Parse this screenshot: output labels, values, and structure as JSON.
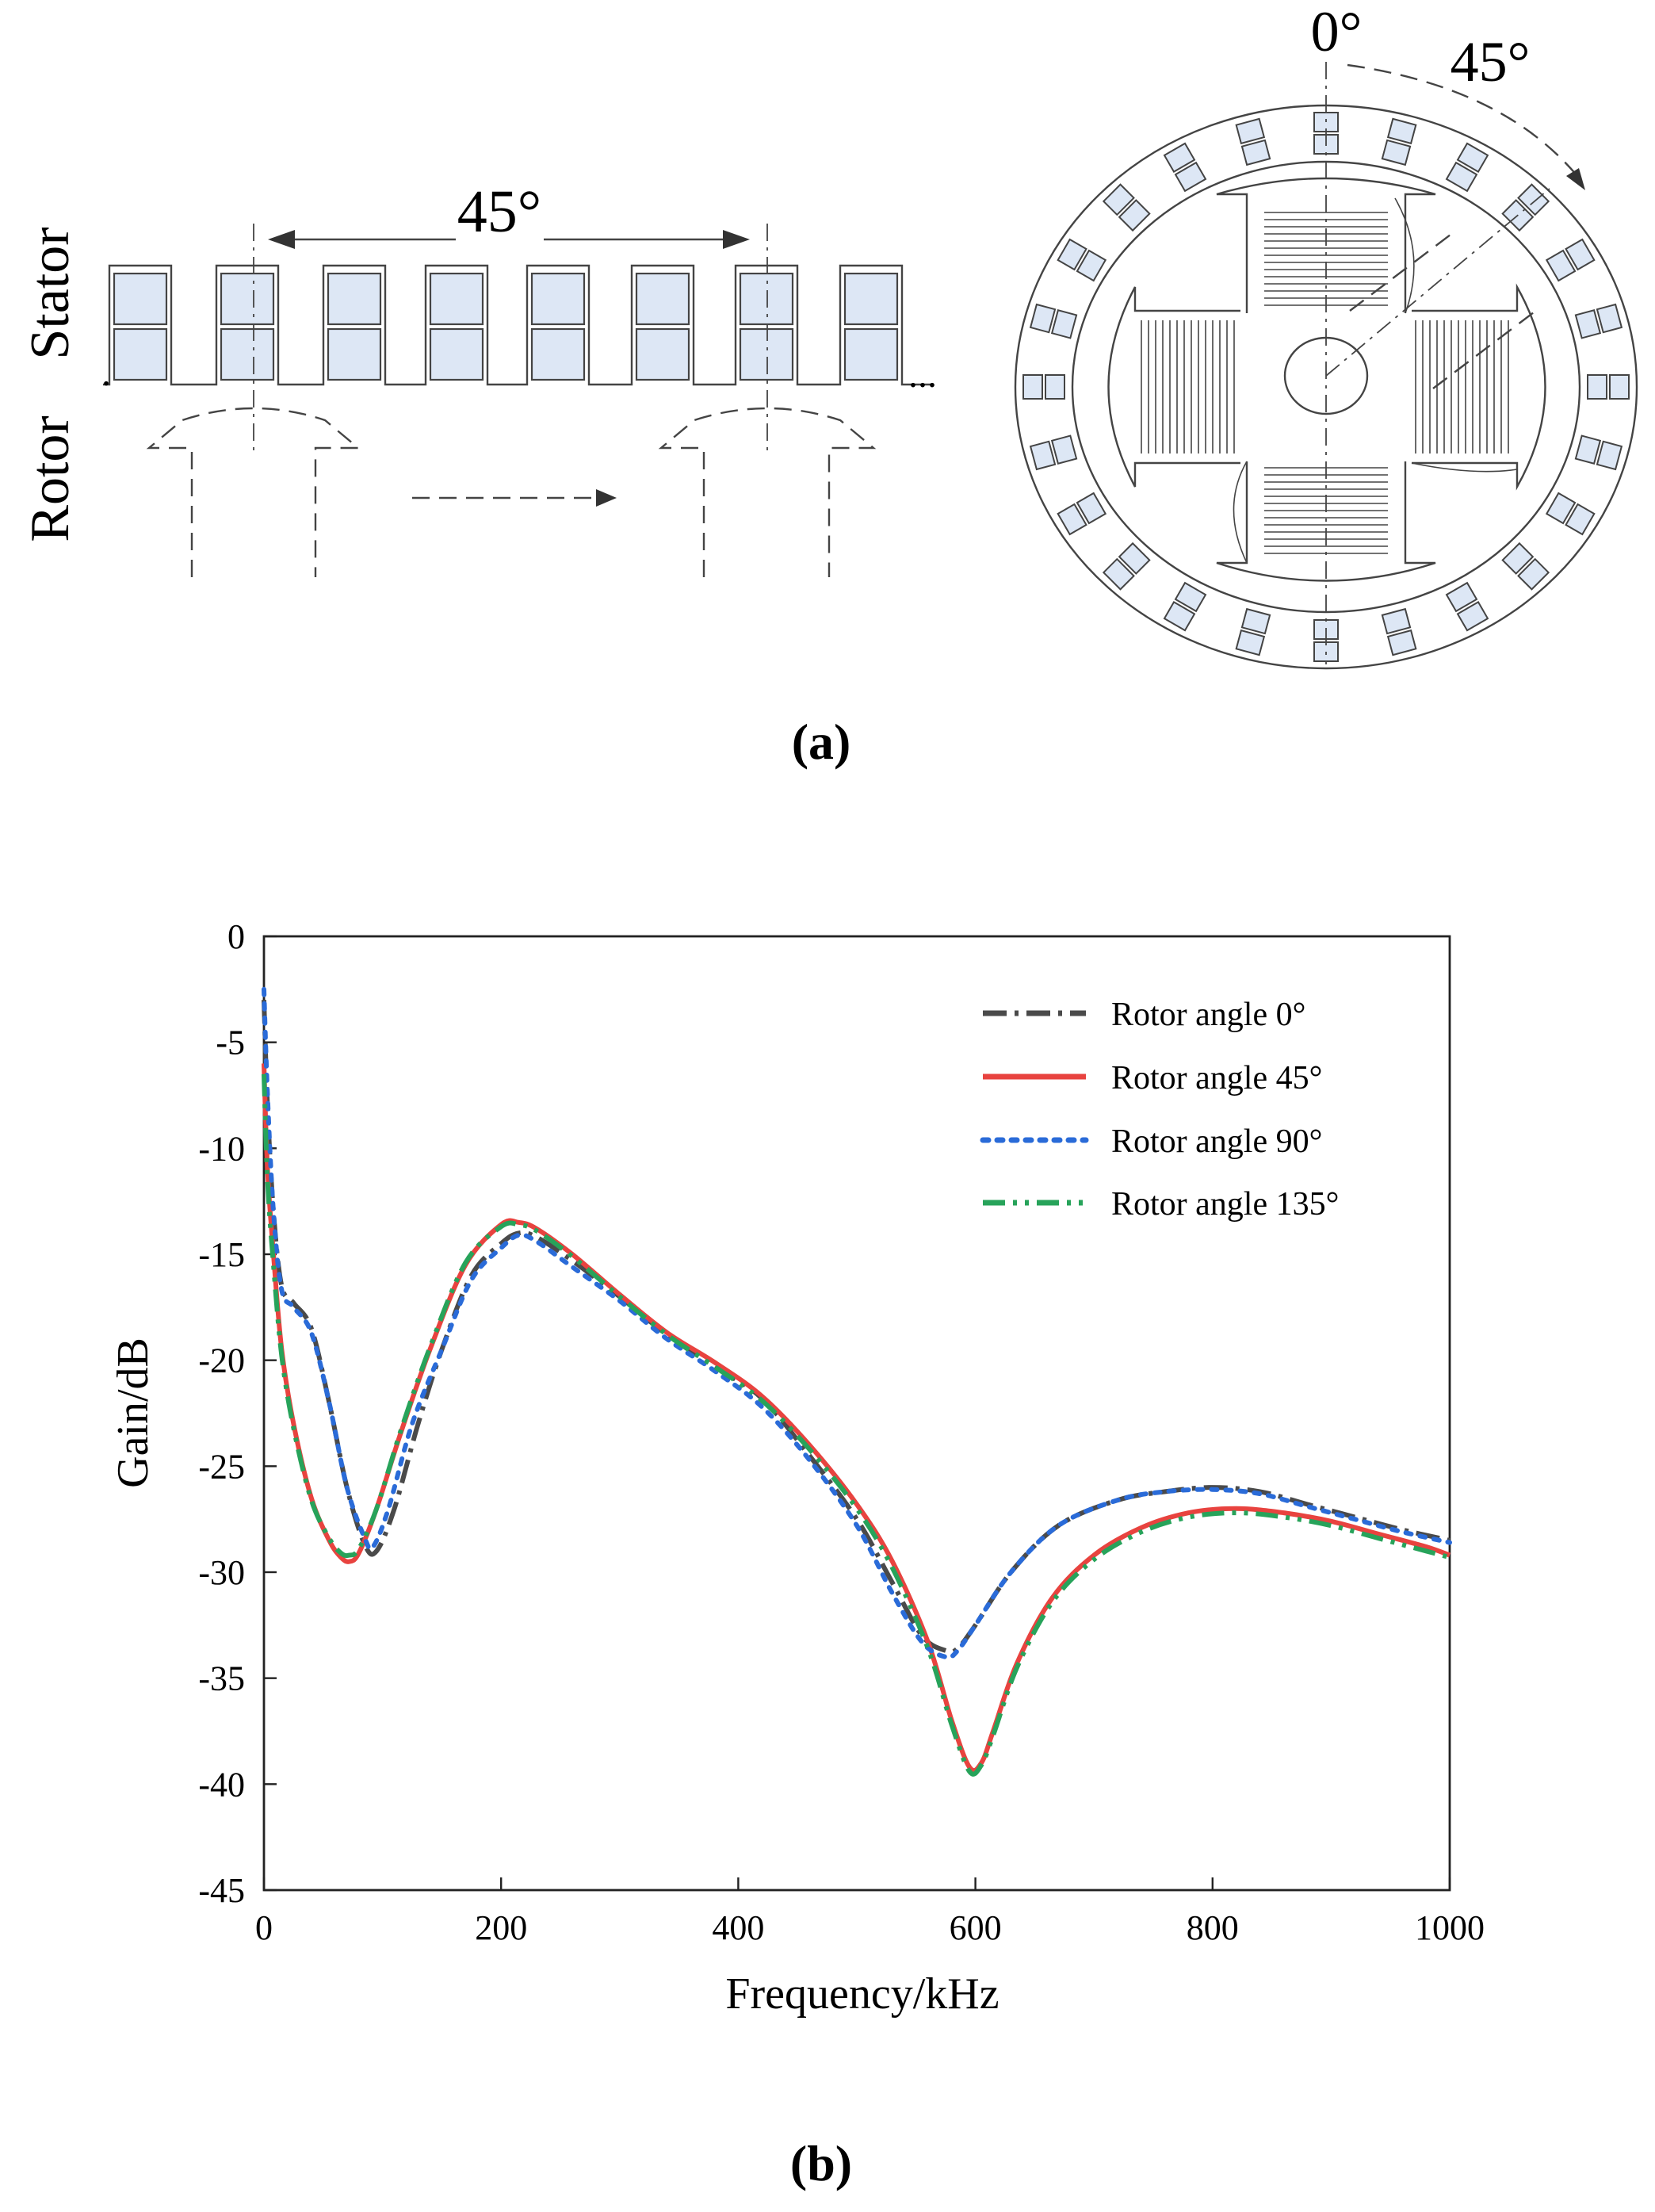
{
  "diagram": {
    "stator_label": "Stator",
    "rotor_label": "Rotor",
    "linear_angle": "45°",
    "cross_angle_start": "0°",
    "cross_angle_end": "45°",
    "dots_left": ".",
    "dots_right": "...",
    "slot_fill": "#dde7f5"
  },
  "captions": {
    "a": "(a)",
    "b": "(b)"
  },
  "chart_data": {
    "type": "line",
    "title": "",
    "xlabel": "Frequency/kHz",
    "ylabel": "Gain/dB",
    "xlim": [
      0,
      1000
    ],
    "ylim": [
      -45,
      0
    ],
    "xticks": [
      0,
      200,
      400,
      600,
      800,
      1000
    ],
    "yticks": [
      0,
      -5,
      -10,
      -15,
      -20,
      -25,
      -30,
      -35,
      -40,
      -45
    ],
    "xtick_labels": [
      "0",
      "200",
      "400",
      "600",
      "800",
      "1000"
    ],
    "ytick_labels": [
      "0",
      "-5",
      "-10",
      "-15",
      "-20",
      "-25",
      "-30",
      "-35",
      "-40",
      "-45"
    ],
    "grid": false,
    "legend_position": "top-right",
    "series": [
      {
        "name": "Rotor angle 0°",
        "color": "#4a4a4a",
        "style": "dash-dot",
        "x": [
          0,
          3,
          8,
          15,
          25,
          40,
          55,
          70,
          85,
          95,
          110,
          130,
          150,
          175,
          200,
          215,
          230,
          260,
          300,
          340,
          380,
          420,
          460,
          500,
          530,
          555,
          575,
          585,
          600,
          630,
          670,
          720,
          760,
          800,
          840,
          880,
          920,
          960,
          1000
        ],
        "y": [
          -3,
          -8,
          -13,
          -16.5,
          -17.3,
          -18.5,
          -22,
          -26,
          -28.7,
          -29,
          -27,
          -23,
          -19.5,
          -16,
          -14.5,
          -14,
          -14.2,
          -15.3,
          -17,
          -18.8,
          -20.3,
          -21.8,
          -24.5,
          -27.5,
          -30.5,
          -33,
          -33.7,
          -33.6,
          -32.5,
          -30,
          -27.8,
          -26.6,
          -26.2,
          -26,
          -26.2,
          -26.8,
          -27.4,
          -28,
          -28.5
        ]
      },
      {
        "name": "Rotor angle 45°",
        "color": "#e8433f",
        "style": "solid",
        "x": [
          0,
          3,
          8,
          15,
          25,
          40,
          55,
          65,
          72,
          80,
          95,
          115,
          140,
          170,
          200,
          215,
          230,
          260,
          300,
          340,
          380,
          420,
          460,
          500,
          530,
          560,
          580,
          595,
          605,
          615,
          635,
          665,
          700,
          740,
          780,
          820,
          860,
          900,
          940,
          980,
          1000
        ],
        "y": [
          -6,
          -11,
          -15,
          -19.5,
          -23,
          -26.5,
          -28.5,
          -29.3,
          -29.5,
          -29.1,
          -27,
          -23.5,
          -19.5,
          -15.5,
          -13.6,
          -13.5,
          -13.8,
          -15,
          -16.9,
          -18.7,
          -20.1,
          -21.7,
          -24,
          -26.8,
          -29.5,
          -33.3,
          -37,
          -39.2,
          -39,
          -37.5,
          -34.3,
          -31.2,
          -29.2,
          -27.9,
          -27.2,
          -27,
          -27.2,
          -27.6,
          -28.2,
          -28.8,
          -29.2
        ]
      },
      {
        "name": "Rotor angle 90°",
        "color": "#2a6bd8",
        "style": "dotted",
        "x": [
          0,
          3,
          8,
          15,
          25,
          40,
          55,
          70,
          85,
          92,
          105,
          125,
          150,
          175,
          200,
          215,
          230,
          260,
          300,
          340,
          380,
          420,
          460,
          500,
          530,
          555,
          575,
          585,
          600,
          630,
          670,
          720,
          760,
          800,
          840,
          880,
          920,
          960,
          1000
        ],
        "y": [
          -2.5,
          -7.5,
          -13,
          -16.7,
          -17.5,
          -18.7,
          -22,
          -26,
          -28.4,
          -28.8,
          -27,
          -23,
          -19.5,
          -16.2,
          -14.7,
          -14.1,
          -14.4,
          -15.6,
          -17.2,
          -19,
          -20.5,
          -22.2,
          -24.7,
          -27.8,
          -31,
          -33.3,
          -34,
          -33.7,
          -32.5,
          -30,
          -27.8,
          -26.6,
          -26.2,
          -26.1,
          -26.3,
          -26.9,
          -27.5,
          -28.1,
          -28.6
        ]
      },
      {
        "name": "Rotor angle 135°",
        "color": "#27a35a",
        "style": "dash-dot-dot",
        "x": [
          0,
          3,
          8,
          15,
          25,
          40,
          55,
          65,
          72,
          80,
          95,
          115,
          140,
          170,
          200,
          215,
          230,
          260,
          300,
          340,
          380,
          420,
          460,
          500,
          530,
          560,
          580,
          595,
          605,
          615,
          635,
          665,
          700,
          740,
          780,
          820,
          860,
          900,
          940,
          980,
          1000
        ],
        "y": [
          -6.5,
          -11.5,
          -15.5,
          -19.8,
          -23.2,
          -26.6,
          -28.4,
          -29.1,
          -29.2,
          -28.9,
          -27,
          -23.4,
          -19.4,
          -15.4,
          -13.7,
          -13.6,
          -13.9,
          -15.1,
          -17,
          -18.8,
          -20.3,
          -21.9,
          -24.2,
          -27,
          -29.8,
          -33.6,
          -37.2,
          -39.4,
          -39.1,
          -37.7,
          -34.5,
          -31.4,
          -29.4,
          -28.1,
          -27.4,
          -27.2,
          -27.4,
          -27.8,
          -28.4,
          -29,
          -29.3
        ]
      }
    ]
  }
}
